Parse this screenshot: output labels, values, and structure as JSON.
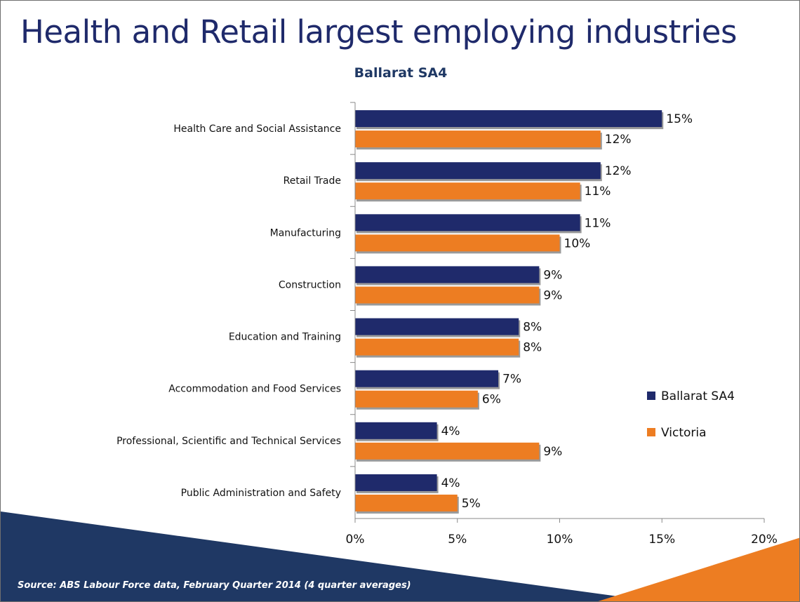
{
  "title": "Health and Retail largest employing industries",
  "source": "Source: ABS Labour Force data, February Quarter 2014 (4 quarter averages)",
  "colors": {
    "series_ballarat": "#1f2a6b",
    "series_victoria": "#ed7d22",
    "deco_navy": "#1f3864",
    "deco_orange": "#ed7d22",
    "text_dark": "#111111"
  },
  "chart_data": {
    "type": "bar",
    "orientation": "horizontal",
    "title": "Ballarat  SA4",
    "categories": [
      "Health Care and Social Assistance",
      "Retail Trade",
      "Manufacturing",
      "Construction",
      "Education and Training",
      "Accommodation and Food Services",
      "Professional, Scientific and Technical Services",
      "Public Administration and Safety"
    ],
    "series": [
      {
        "name": "Ballarat SA4",
        "values": [
          15,
          12,
          11,
          9,
          8,
          7,
          4,
          4
        ],
        "labels": [
          "15%",
          "12%",
          "11%",
          "9%",
          "8%",
          "7%",
          "4%",
          "4%"
        ]
      },
      {
        "name": "Victoria",
        "values": [
          12,
          11,
          10,
          9,
          8,
          6,
          9,
          5
        ],
        "labels": [
          "12%",
          "11%",
          "10%",
          "9%",
          "8%",
          "6%",
          "9%",
          "5%"
        ]
      }
    ],
    "xlim": [
      0,
      20
    ],
    "xticks": [
      0,
      5,
      10,
      15,
      20
    ],
    "xtick_labels": [
      "0%",
      "5%",
      "10%",
      "15%",
      "20%"
    ],
    "grid": false,
    "legend_position": "right"
  }
}
